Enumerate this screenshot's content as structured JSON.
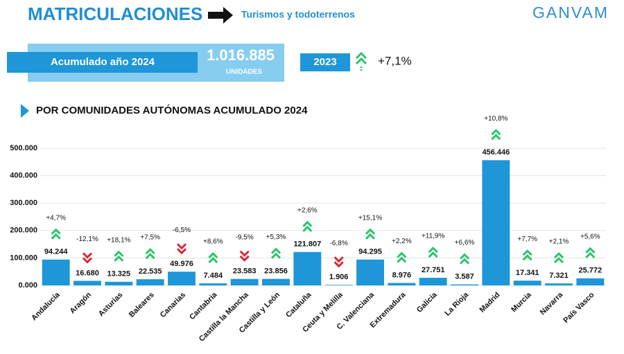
{
  "header": {
    "title": "MATRICULACIONES",
    "subtitle": "Turismos y todoterrenos",
    "logo": "GANVAM"
  },
  "summary": {
    "label": "Acumulado año 2024",
    "total": "1.016.885",
    "unit": "UNIDADES",
    "compare_year": "2023",
    "change": "+7,1%"
  },
  "chart_data": {
    "type": "bar",
    "title": "POR COMUNIDADES AUTÓNOMAS ACUMULADO 2024",
    "categories": [
      "Andalucía",
      "Aragón",
      "Asturias",
      "Baleares",
      "Canarias",
      "Cantabria",
      "Castilla la Mancha",
      "Castilla y León",
      "Cataluña",
      "Ceuta y Melilla",
      "C. Valenciana",
      "Extremadura",
      "Galicia",
      "La Rioja",
      "Madrid",
      "Murcia",
      "Navarra",
      "País Vasco"
    ],
    "values": [
      94244,
      16680,
      13325,
      22535,
      49976,
      7484,
      23583,
      23856,
      121807,
      1906,
      94295,
      8976,
      27751,
      3587,
      456446,
      17341,
      7321,
      25772
    ],
    "value_labels": [
      "94.244",
      "16.680",
      "13.325",
      "22.535",
      "49.976",
      "7.484",
      "23.583",
      "23.856",
      "121.807",
      "1.906",
      "94.295",
      "8.976",
      "27.751",
      "3.587",
      "456.446",
      "17.341",
      "7.321",
      "25.772"
    ],
    "changes": [
      4.7,
      -12.1,
      18.1,
      7.5,
      -6.5,
      8.6,
      -9.5,
      5.3,
      2.6,
      -6.8,
      15.1,
      2.2,
      11.9,
      6.6,
      10.8,
      7.7,
      2.1,
      5.6
    ],
    "change_labels": [
      "+4,7%",
      "-12,1%",
      "+18,1%",
      "+7,5%",
      "-6,5%",
      "+8,6%",
      "-9,5%",
      "+5,3%",
      "+2,6%",
      "-6,8%",
      "+15,1%",
      "+2,2%",
      "+11,9%",
      "+6,6%",
      "+10,8%",
      "+7,7%",
      "+2,1%",
      "+5,6%"
    ],
    "color": "#1e96d8",
    "up_color": "#2cc46a",
    "down_color": "#d62a36",
    "ylim": [
      0,
      500000
    ],
    "yticks": [
      {
        "value": 0,
        "label": "0.000"
      },
      {
        "value": 100000,
        "label": "100.000"
      },
      {
        "value": 200000,
        "label": "200.000"
      },
      {
        "value": 300000,
        "label": "300.000"
      },
      {
        "value": 400000,
        "label": "400.000"
      },
      {
        "value": 500000,
        "label": "500.000"
      }
    ],
    "grid": true
  }
}
